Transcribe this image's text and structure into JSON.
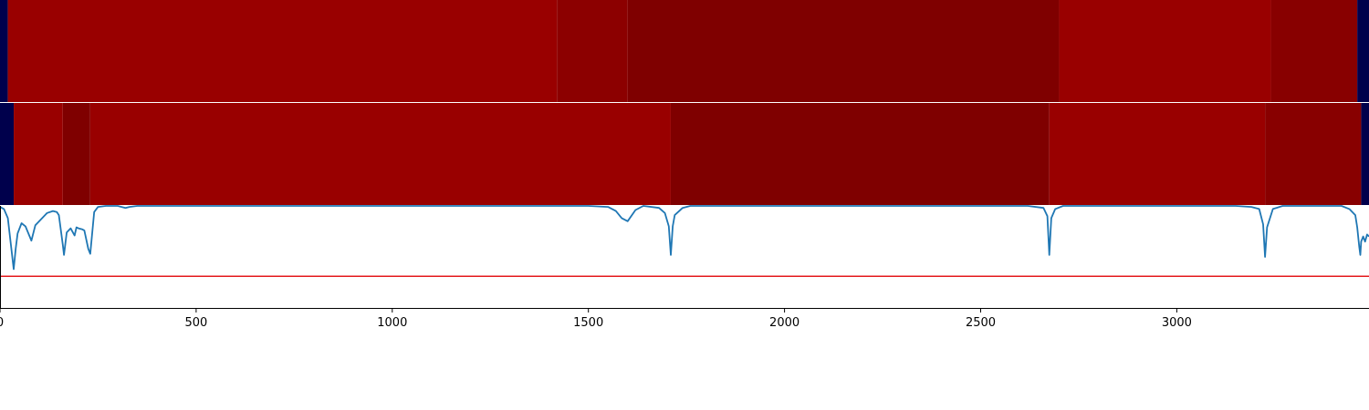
{
  "chart_data": {
    "type": "heatmap",
    "x_ticks": [
      {
        "value": 0,
        "label": "0"
      },
      {
        "value": 500,
        "label": "500"
      },
      {
        "value": 1000,
        "label": "1000"
      },
      {
        "value": 1500,
        "label": "1500"
      },
      {
        "value": 2000,
        "label": "2000"
      },
      {
        "value": 2500,
        "label": "2500"
      },
      {
        "value": 3000,
        "label": "3000"
      }
    ],
    "xlim": [
      0,
      3490
    ],
    "grid": false,
    "rows": [
      {
        "segments": [
          {
            "x0": 0,
            "x1": 20,
            "color": "#00004c"
          },
          {
            "x0": 20,
            "x1": 1420,
            "color": "#990000"
          },
          {
            "x0": 1420,
            "x1": 1600,
            "color": "#8c0000"
          },
          {
            "x0": 1600,
            "x1": 2700,
            "color": "#7f0000"
          },
          {
            "x0": 2700,
            "x1": 3240,
            "color": "#990000"
          },
          {
            "x0": 3240,
            "x1": 3460,
            "color": "#880000"
          },
          {
            "x0": 3460,
            "x1": 3490,
            "color": "#00004c"
          }
        ]
      },
      {
        "segments": [
          {
            "x0": 0,
            "x1": 35,
            "color": "#00004c"
          },
          {
            "x0": 35,
            "x1": 160,
            "color": "#990000"
          },
          {
            "x0": 160,
            "x1": 230,
            "color": "#7f0000"
          },
          {
            "x0": 230,
            "x1": 1710,
            "color": "#990000"
          },
          {
            "x0": 1710,
            "x1": 2675,
            "color": "#7f0000"
          },
          {
            "x0": 2675,
            "x1": 3225,
            "color": "#990000"
          },
          {
            "x0": 3225,
            "x1": 3470,
            "color": "#880000"
          },
          {
            "x0": 3470,
            "x1": 3490,
            "color": "#00004c"
          }
        ]
      }
    ],
    "line_series": {
      "color": "#1f77b4",
      "ylim": [
        0,
        1
      ],
      "x": [
        0,
        10,
        20,
        35,
        40,
        45,
        55,
        65,
        80,
        90,
        100,
        120,
        135,
        145,
        150,
        160,
        163,
        170,
        180,
        190,
        195,
        200,
        210,
        215,
        225,
        230,
        240,
        250,
        270,
        300,
        320,
        330,
        350,
        400,
        900,
        1000,
        1500,
        1550,
        1570,
        1585,
        1600,
        1620,
        1640,
        1680,
        1695,
        1705,
        1710,
        1715,
        1720,
        1740,
        1760,
        1800,
        2500,
        2620,
        2660,
        2670,
        2675,
        2680,
        2690,
        2710,
        2800,
        3150,
        3190,
        3210,
        3220,
        3225,
        3230,
        3245,
        3270,
        3300,
        3420,
        3440,
        3455,
        3460,
        3465,
        3468,
        3470,
        3475,
        3480,
        3485,
        3490
      ],
      "y": [
        0.99,
        0.97,
        0.88,
        0.38,
        0.58,
        0.73,
        0.83,
        0.8,
        0.66,
        0.81,
        0.85,
        0.93,
        0.95,
        0.94,
        0.91,
        0.62,
        0.52,
        0.74,
        0.78,
        0.71,
        0.79,
        0.78,
        0.77,
        0.76,
        0.58,
        0.53,
        0.94,
        0.99,
        1.0,
        1.0,
        0.98,
        0.99,
        1.0,
        1.0,
        1.0,
        1.0,
        1.0,
        0.99,
        0.95,
        0.88,
        0.85,
        0.96,
        1.0,
        0.98,
        0.93,
        0.8,
        0.52,
        0.8,
        0.91,
        0.98,
        1.0,
        1.0,
        1.0,
        1.0,
        0.98,
        0.9,
        0.52,
        0.88,
        0.97,
        1.0,
        1.0,
        1.0,
        0.99,
        0.97,
        0.82,
        0.5,
        0.79,
        0.97,
        1.0,
        1.0,
        1.0,
        0.97,
        0.91,
        0.79,
        0.6,
        0.52,
        0.65,
        0.7,
        0.65,
        0.72,
        0.7
      ],
      "threshold": {
        "y": 0.31,
        "color": "#e41a1c"
      }
    }
  }
}
